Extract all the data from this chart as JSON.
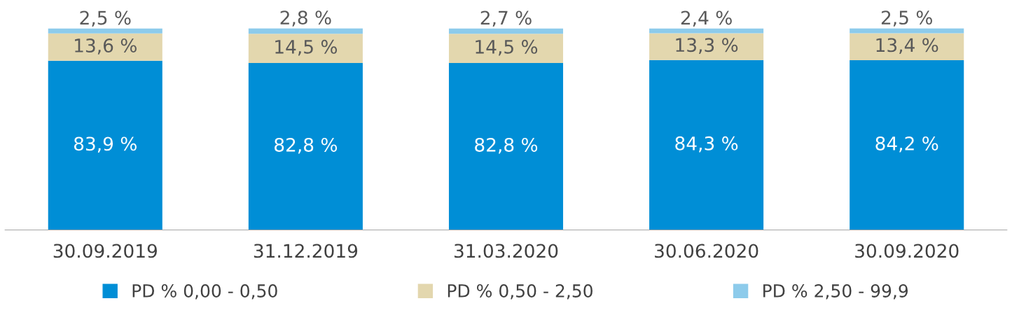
{
  "chart_data": {
    "type": "bar",
    "stacked": true,
    "categories": [
      "30.09.2019",
      "31.12.2019",
      "31.03.2020",
      "30.06.2020",
      "30.09.2020"
    ],
    "ylim": [
      0,
      100
    ],
    "series": [
      {
        "name": "PD % 0,00 - 0,50",
        "color": "#008ed6",
        "values": [
          83.9,
          82.8,
          82.8,
          84.3,
          84.2
        ],
        "value_labels": [
          "83,9 %",
          "82,8 %",
          "82,8 %",
          "84,3 %",
          "84,2 %"
        ]
      },
      {
        "name": "PD % 0,50 - 2,50",
        "color": "#e3d7ae",
        "values": [
          13.6,
          14.5,
          14.5,
          13.3,
          13.4
        ],
        "value_labels": [
          "13,6 %",
          "14,5 %",
          "14,5 %",
          "13,3 %",
          "13,4 %"
        ]
      },
      {
        "name": "PD % 2,50 - 99,9",
        "color": "#8dcbeb",
        "values": [
          2.5,
          2.8,
          2.7,
          2.4,
          2.5
        ],
        "value_labels": [
          "2,5 %",
          "2,8 %",
          "2,7 %",
          "2,4 %",
          "2,5 %"
        ]
      }
    ],
    "legend": "bottom",
    "grid": false
  }
}
